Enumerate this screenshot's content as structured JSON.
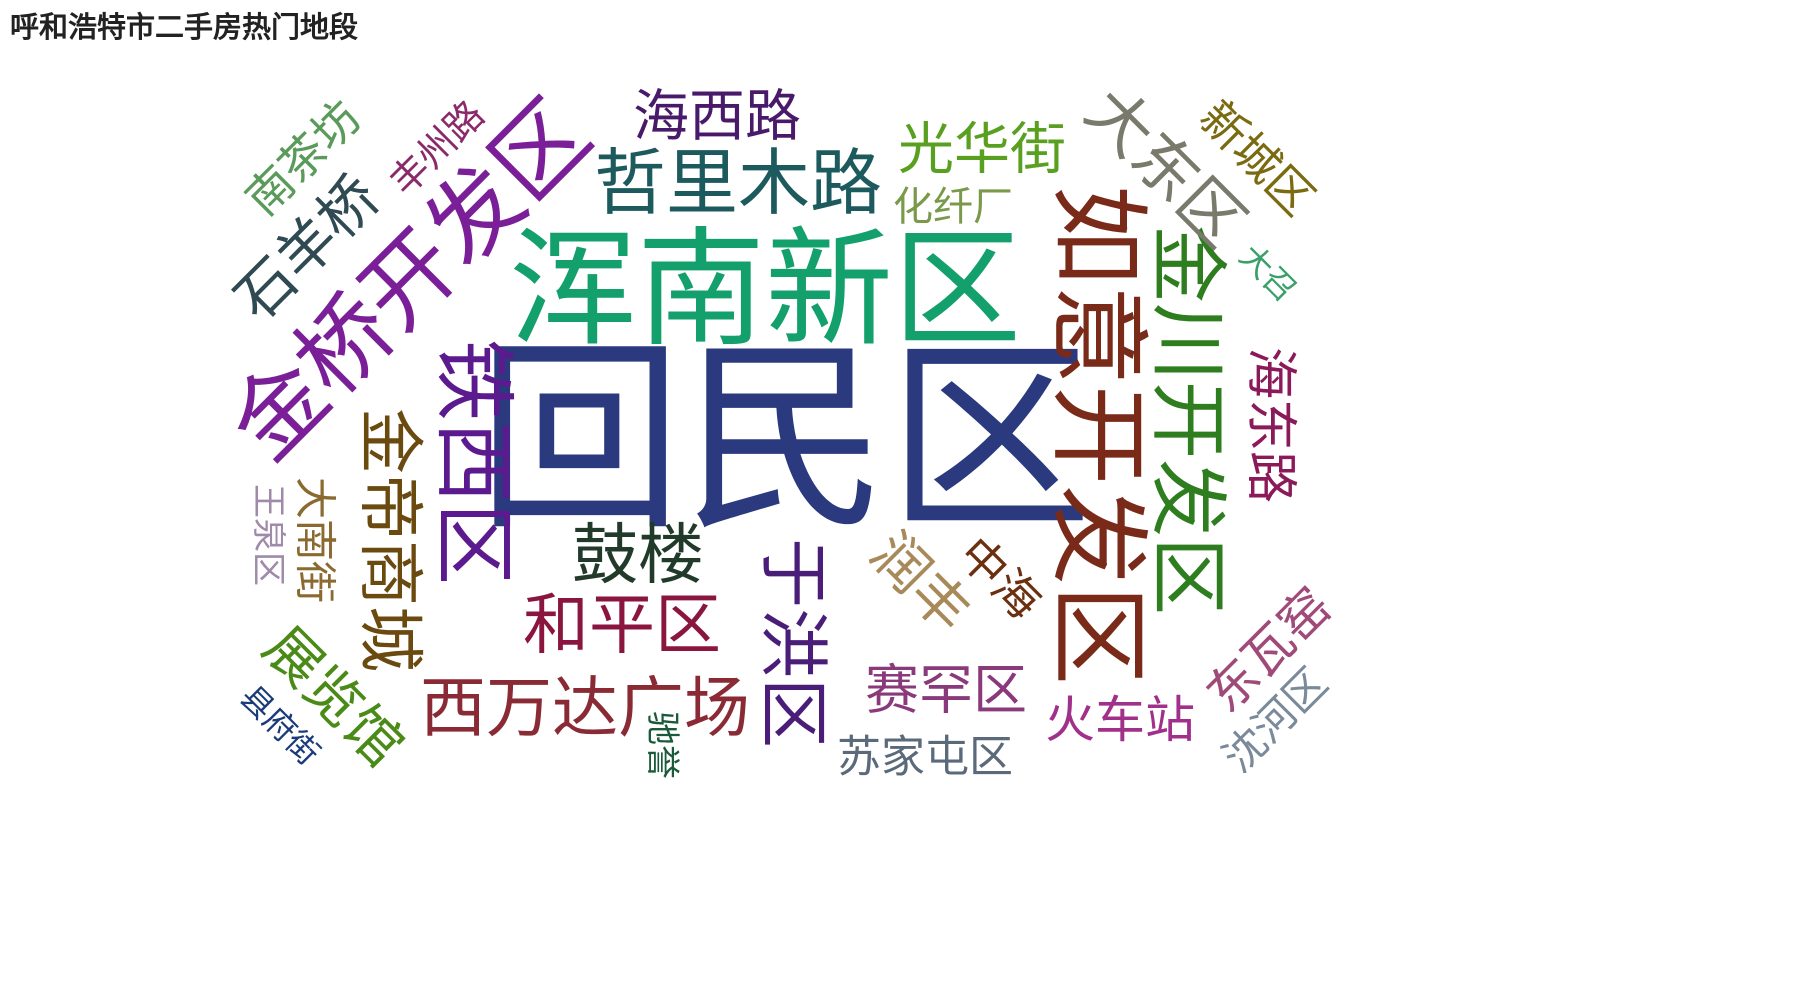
{
  "title": "呼和浩特市二手房热门地段",
  "chart_data": {
    "type": "wordcloud",
    "title": "呼和浩特市二手房热门地段",
    "words": [
      {
        "text": "回民区",
        "weight": 100,
        "color": "#2b3a7e"
      },
      {
        "text": "浑南新区",
        "weight": 88,
        "color": "#13a06c"
      },
      {
        "text": "如意开发区",
        "weight": 76,
        "color": "#7a2a18"
      },
      {
        "text": "金桥开发区",
        "weight": 74,
        "color": "#7a1f98"
      },
      {
        "text": "金川开发区",
        "weight": 66,
        "color": "#2e7d1e"
      },
      {
        "text": "铁西区",
        "weight": 62,
        "color": "#5b1a8e"
      },
      {
        "text": "哲里木路",
        "weight": 58,
        "color": "#1d5a5e"
      },
      {
        "text": "金帝商城",
        "weight": 54,
        "color": "#6b4a10"
      },
      {
        "text": "和平区",
        "weight": 54,
        "color": "#8a1640"
      },
      {
        "text": "西万达广场",
        "weight": 54,
        "color": "#8a2a34"
      },
      {
        "text": "大东区",
        "weight": 52,
        "color": "#7a7a6c"
      },
      {
        "text": "于洪区",
        "weight": 52,
        "color": "#4a1e78"
      },
      {
        "text": "鼓楼",
        "weight": 50,
        "color": "#223a2a"
      },
      {
        "text": "石羊桥",
        "weight": 48,
        "color": "#2f4a52"
      },
      {
        "text": "光华街",
        "weight": 46,
        "color": "#5aa020"
      },
      {
        "text": "展览馆",
        "weight": 46,
        "color": "#4a8a16"
      },
      {
        "text": "润丰",
        "weight": 46,
        "color": "#a88a5a"
      },
      {
        "text": "海西路",
        "weight": 42,
        "color": "#4a1a6a"
      },
      {
        "text": "赛罕区",
        "weight": 42,
        "color": "#8a3a7a"
      },
      {
        "text": "海东路",
        "weight": 40,
        "color": "#8a1a5a"
      },
      {
        "text": "东瓦窑",
        "weight": 40,
        "color": "#a04a7a"
      },
      {
        "text": "火车站",
        "weight": 38,
        "color": "#a0308a"
      },
      {
        "text": "南茶坊",
        "weight": 36,
        "color": "#5a9a5a"
      },
      {
        "text": "新城区",
        "weight": 36,
        "color": "#7a6a10"
      },
      {
        "text": "中海",
        "weight": 36,
        "color": "#6a3010"
      },
      {
        "text": "苏家屯区",
        "weight": 34,
        "color": "#5a6a7a"
      },
      {
        "text": "沈河区",
        "weight": 34,
        "color": "#7a8a9a"
      },
      {
        "text": "大南街",
        "weight": 32,
        "color": "#8a6a30"
      },
      {
        "text": "化纤厂",
        "weight": 30,
        "color": "#7a9a4a"
      },
      {
        "text": "丰州路",
        "weight": 28,
        "color": "#8a2a6a"
      },
      {
        "text": "王泉区",
        "weight": 26,
        "color": "#a08aaa"
      },
      {
        "text": "驰誉",
        "weight": 26,
        "color": "#1a5a3a"
      },
      {
        "text": "大召",
        "weight": 24,
        "color": "#3aa06a"
      },
      {
        "text": "县府街",
        "weight": 24,
        "color": "#1a3a7a"
      }
    ]
  }
}
